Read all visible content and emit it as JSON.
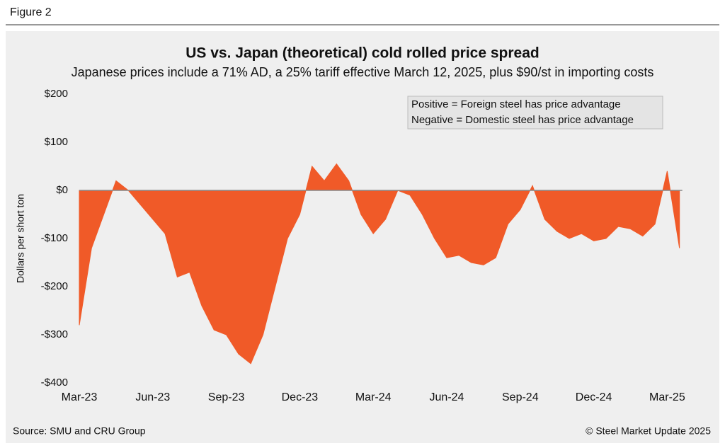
{
  "figure_label": "Figure 2",
  "source": "Source: SMU and CRU Group",
  "copyright": "© Steel Market Update 2025",
  "chart_data": {
    "type": "area",
    "title": "US vs. Japan (theoretical) cold rolled price spread",
    "subtitle": "Japanese prices include a 71% AD, a 25% tariff effective March 12, 2025, plus $90/st in importing costs",
    "y_label": "Dollars per short ton",
    "annotation": [
      "Positive = Foreign steel has price advantage",
      "Negative = Domestic steel has price advantage"
    ],
    "color": "#f05a28",
    "categories": [
      "Mar-23",
      null,
      null,
      null,
      null,
      null,
      "Jun-23",
      null,
      null,
      null,
      null,
      null,
      "Sep-23",
      null,
      null,
      null,
      null,
      null,
      "Dec-23",
      null,
      null,
      null,
      null,
      null,
      "Mar-24",
      null,
      null,
      null,
      null,
      null,
      "Jun-24",
      null,
      null,
      null,
      null,
      null,
      "Sep-24",
      null,
      null,
      null,
      null,
      null,
      "Dec-24",
      null,
      null,
      null,
      null,
      null,
      "Mar-25",
      null
    ],
    "values": [
      -280,
      -120,
      -50,
      20,
      0,
      -30,
      -60,
      -90,
      -180,
      -170,
      -240,
      -290,
      -300,
      -340,
      -360,
      -300,
      -200,
      -100,
      -50,
      50,
      20,
      55,
      20,
      -50,
      -90,
      -60,
      0,
      -10,
      -50,
      -100,
      -140,
      -135,
      -150,
      -155,
      -140,
      -70,
      -40,
      10,
      -60,
      -85,
      -100,
      -90,
      -105,
      -100,
      -75,
      -80,
      -95,
      -70,
      40,
      -120
    ],
    "ylim": [
      -400,
      200
    ],
    "yticks": [
      {
        "value": 200,
        "label": "$200"
      },
      {
        "value": 100,
        "label": "$100"
      },
      {
        "value": 0,
        "label": "$0"
      },
      {
        "value": -100,
        "label": "-$100"
      },
      {
        "value": -200,
        "label": "-$200"
      },
      {
        "value": -300,
        "label": "-$300"
      },
      {
        "value": -400,
        "label": "-$400"
      }
    ]
  }
}
